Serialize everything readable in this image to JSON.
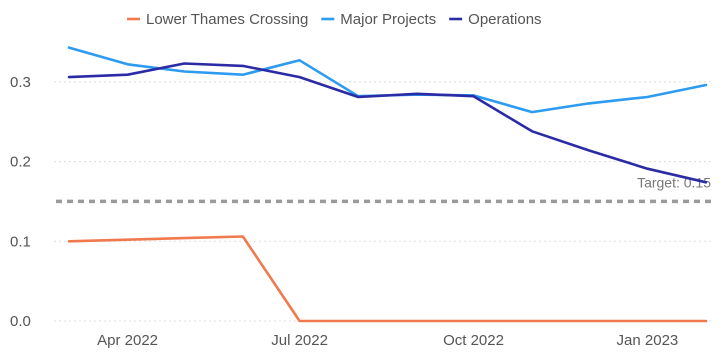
{
  "chart_data": {
    "type": "line",
    "title": "",
    "xlabel": "",
    "ylabel": "",
    "x": [
      "2022-03-01",
      "2022-04-01",
      "2022-05-01",
      "2022-06-01",
      "2022-07-01",
      "2022-08-01",
      "2022-09-01",
      "2022-10-01",
      "2022-11-01",
      "2022-12-01",
      "2023-01-01",
      "2023-02-01"
    ],
    "x_ticks": [
      {
        "date": "2022-04-01",
        "label": "Apr 2022"
      },
      {
        "date": "2022-07-01",
        "label": "Jul 2022"
      },
      {
        "date": "2022-10-01",
        "label": "Oct 2022"
      },
      {
        "date": "2023-01-01",
        "label": "Jan 2023"
      }
    ],
    "y_ticks": [
      "0.0",
      "0.1",
      "0.2",
      "0.3"
    ],
    "ylim": [
      0,
      0.35
    ],
    "grid": true,
    "legend_position": "top",
    "series": [
      {
        "name": "Lower Thames Crossing",
        "color": "#f07a4d",
        "values": [
          0.1,
          0.102,
          0.104,
          0.106,
          0.0,
          0.0,
          0.0,
          0.0,
          0.0,
          0.0,
          0.0,
          0.0
        ]
      },
      {
        "name": "Major Projects",
        "color": "#2d9bf0",
        "values": [
          0.343,
          0.322,
          0.313,
          0.309,
          0.327,
          0.282,
          0.284,
          0.283,
          0.262,
          0.273,
          0.281,
          0.296
        ]
      },
      {
        "name": "Operations",
        "color": "#2b2ba6",
        "values": [
          0.306,
          0.309,
          0.323,
          0.32,
          0.306,
          0.281,
          0.285,
          0.282,
          0.238,
          0.214,
          0.191,
          0.174
        ]
      }
    ],
    "target": {
      "value": 0.15,
      "label": "Target: 0.15",
      "color": "#9a9a9a"
    }
  }
}
